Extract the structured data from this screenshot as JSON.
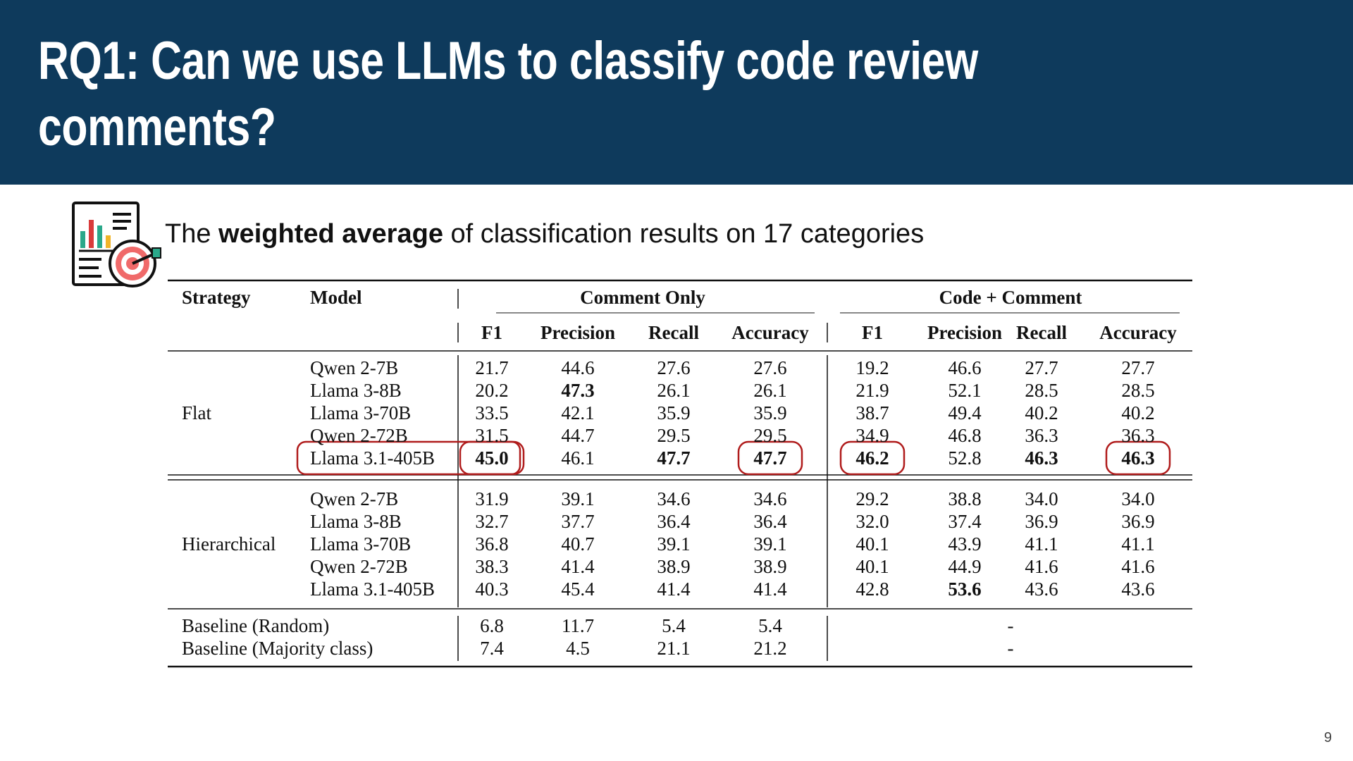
{
  "slide": {
    "title": "RQ1: Can we use LLMs to classify code review comments?",
    "subtitle_prefix": "The ",
    "subtitle_bold": "weighted average",
    "subtitle_suffix": " of classification results on 17 categories",
    "page_number": "9",
    "icon": "chart-target-icon"
  },
  "colors": {
    "header_bg": "#0e3a5c",
    "highlight": "#b01c1c"
  },
  "table": {
    "headers": {
      "strategy": "Strategy",
      "model": "Model",
      "group1": "Comment Only",
      "group2": "Code + Comment",
      "metrics": [
        "F1",
        "Precision",
        "Recall",
        "Accuracy",
        "F1",
        "Precision",
        "Recall",
        "Accuracy"
      ]
    },
    "sections": [
      {
        "strategy": "Flat",
        "rows": [
          {
            "model": "Qwen 2-7B",
            "values": [
              "21.7",
              "44.6",
              "27.6",
              "27.6",
              "19.2",
              "46.6",
              "27.7",
              "27.7"
            ],
            "bold": [],
            "circled": []
          },
          {
            "model": "Llama 3-8B",
            "values": [
              "20.2",
              "47.3",
              "26.1",
              "26.1",
              "21.9",
              "52.1",
              "28.5",
              "28.5"
            ],
            "bold": [
              1
            ],
            "circled": []
          },
          {
            "model": "Llama 3-70B",
            "values": [
              "33.5",
              "42.1",
              "35.9",
              "35.9",
              "38.7",
              "49.4",
              "40.2",
              "40.2"
            ],
            "bold": [],
            "circled": []
          },
          {
            "model": "Qwen 2-72B",
            "values": [
              "31.5",
              "44.7",
              "29.5",
              "29.5",
              "34.9",
              "46.8",
              "36.3",
              "36.3"
            ],
            "bold": [],
            "circled": []
          },
          {
            "model": "Llama 3.1-405B",
            "values": [
              "45.0",
              "46.1",
              "47.7",
              "47.7",
              "46.2",
              "52.8",
              "46.3",
              "46.3"
            ],
            "bold": [
              0,
              2,
              3,
              4,
              6,
              7
            ],
            "circled": [
              0,
              3,
              4,
              7
            ]
          }
        ]
      },
      {
        "strategy": "Hierarchical",
        "rows": [
          {
            "model": "Qwen 2-7B",
            "values": [
              "31.9",
              "39.1",
              "34.6",
              "34.6",
              "29.2",
              "38.8",
              "34.0",
              "34.0"
            ],
            "bold": [],
            "circled": []
          },
          {
            "model": "Llama 3-8B",
            "values": [
              "32.7",
              "37.7",
              "36.4",
              "36.4",
              "32.0",
              "37.4",
              "36.9",
              "36.9"
            ],
            "bold": [],
            "circled": []
          },
          {
            "model": "Llama 3-70B",
            "values": [
              "36.8",
              "40.7",
              "39.1",
              "39.1",
              "40.1",
              "43.9",
              "41.1",
              "41.1"
            ],
            "bold": [],
            "circled": []
          },
          {
            "model": "Qwen 2-72B",
            "values": [
              "38.3",
              "41.4",
              "38.9",
              "38.9",
              "40.1",
              "44.9",
              "41.6",
              "41.6"
            ],
            "bold": [],
            "circled": []
          },
          {
            "model": "Llama 3.1-405B",
            "values": [
              "40.3",
              "45.4",
              "41.4",
              "41.4",
              "42.8",
              "53.6",
              "43.6",
              "43.6"
            ],
            "bold": [
              5
            ],
            "circled": []
          }
        ]
      }
    ],
    "baselines": [
      {
        "label": "Baseline (Random)",
        "values": [
          "6.8",
          "11.7",
          "5.4",
          "5.4"
        ],
        "code_comment": "-"
      },
      {
        "label": "Baseline (Majority class)",
        "values": [
          "7.4",
          "4.5",
          "21.1",
          "21.2"
        ],
        "code_comment": "-"
      }
    ]
  }
}
